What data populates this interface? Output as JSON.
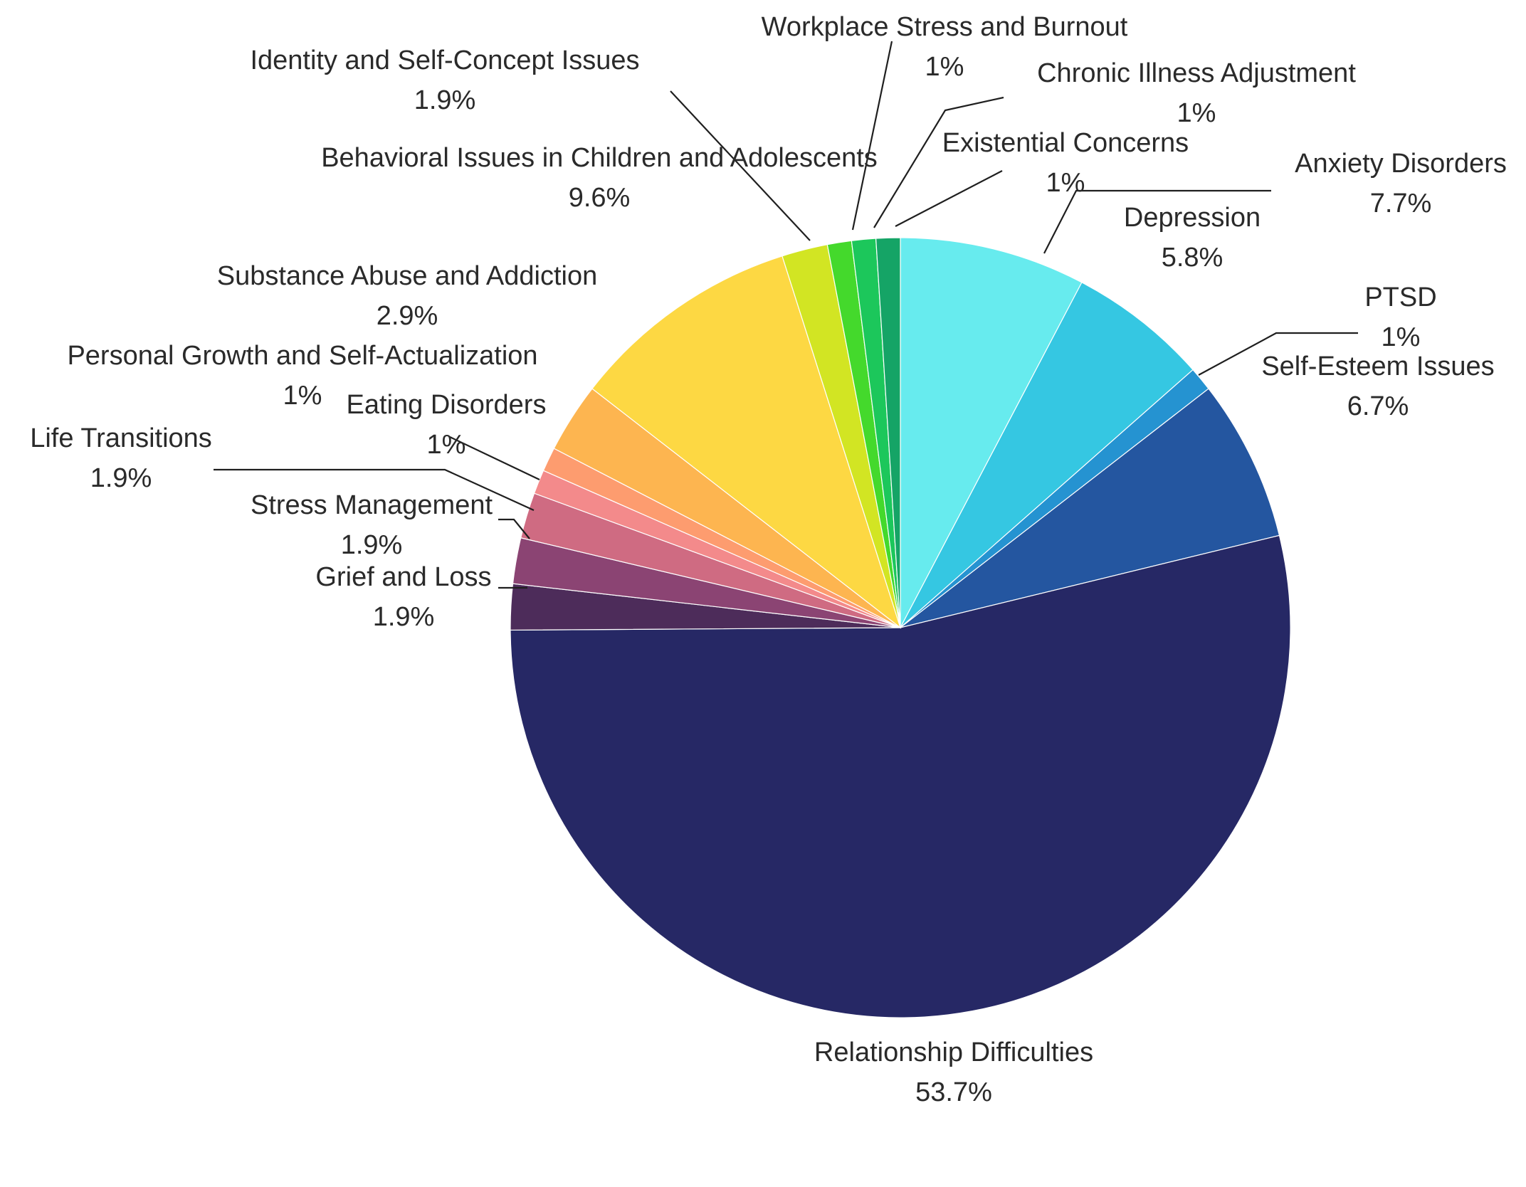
{
  "chart_data": {
    "type": "pie",
    "start": "12 o'clock",
    "direction": "clockwise",
    "slices": [
      {
        "name": "Anxiety Disorders",
        "value": 7.7,
        "value_label": "7.7%",
        "color": "#67ebee"
      },
      {
        "name": "Depression",
        "value": 5.8,
        "value_label": "5.8%",
        "color": "#35c7e2"
      },
      {
        "name": "PTSD",
        "value": 1.0,
        "value_label": "1%",
        "color": "#2593d1"
      },
      {
        "name": "Self-Esteem Issues",
        "value": 6.7,
        "value_label": "6.7%",
        "color": "#2456a0"
      },
      {
        "name": "Relationship Difficulties",
        "value": 53.7,
        "value_label": "53.7%",
        "color": "#262865"
      },
      {
        "name": "Grief and Loss",
        "value": 1.9,
        "value_label": "1.9%",
        "color": "#4d2c5a"
      },
      {
        "name": "Stress Management",
        "value": 1.9,
        "value_label": "1.9%",
        "color": "#8b4473"
      },
      {
        "name": "Life Transitions",
        "value": 1.9,
        "value_label": "1.9%",
        "color": "#cf6b82"
      },
      {
        "name": "Eating Disorders",
        "value": 1.0,
        "value_label": "1%",
        "color": "#f38a8b"
      },
      {
        "name": "Personal Growth and Self-Actualization",
        "value": 1.0,
        "value_label": "1%",
        "color": "#fd9c6f"
      },
      {
        "name": "Substance Abuse and Addiction",
        "value": 2.9,
        "value_label": "2.9%",
        "color": "#fdb550"
      },
      {
        "name": "Behavioral Issues in Children and Adolescents",
        "value": 9.6,
        "value_label": "9.6%",
        "color": "#fdd843"
      },
      {
        "name": "Identity and Self-Concept Issues",
        "value": 1.9,
        "value_label": "1.9%",
        "color": "#d2e523"
      },
      {
        "name": "Workplace Stress and Burnout",
        "value": 1.0,
        "value_label": "1%",
        "color": "#44d92c"
      },
      {
        "name": "Chronic Illness Adjustment",
        "value": 1.0,
        "value_label": "1%",
        "color": "#1cc75b"
      },
      {
        "name": "Existential Concerns",
        "value": 1.0,
        "value_label": "1%",
        "color": "#15a466"
      }
    ]
  }
}
